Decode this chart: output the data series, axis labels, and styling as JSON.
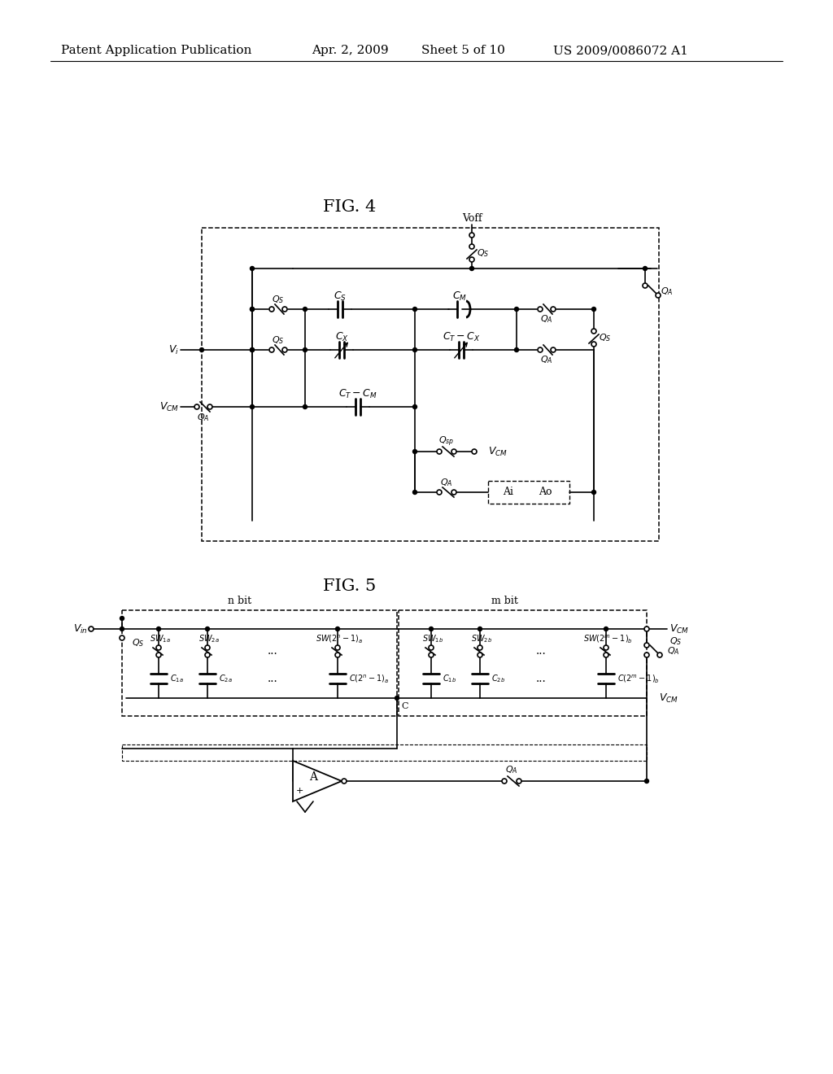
{
  "header_left": "Patent Application Publication",
  "header_mid1": "Apr. 2, 2009",
  "header_mid2": "Sheet 5 of 10",
  "header_right": "US 2009/0086072 A1",
  "fig4_title": "FIG. 4",
  "fig5_title": "FIG. 5",
  "bg_color": "#ffffff",
  "lc": "#000000"
}
